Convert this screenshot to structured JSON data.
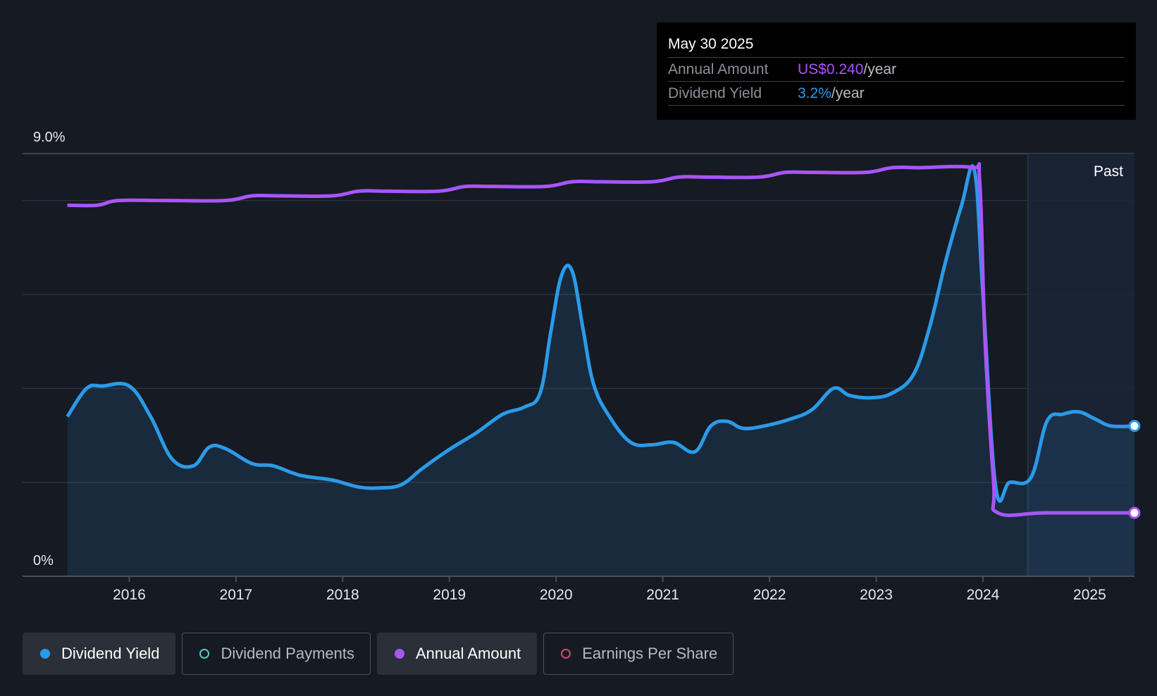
{
  "tooltip": {
    "date": "May 30 2025",
    "rows": [
      {
        "label": "Annual Amount",
        "value": "US$0.240",
        "unit": "/year"
      },
      {
        "label": "Dividend Yield",
        "value": "3.2%",
        "unit": "/year"
      }
    ]
  },
  "legend": [
    {
      "label": "Dividend Yield",
      "color": "#2b9ae8",
      "active": true,
      "filled": true
    },
    {
      "label": "Dividend Payments",
      "color": "#4fd1c5",
      "active": false,
      "filled": false
    },
    {
      "label": "Annual Amount",
      "color": "#a855f7",
      "active": true,
      "filled": true
    },
    {
      "label": "Earnings Per Share",
      "color": "#d9466f",
      "active": false,
      "filled": false
    }
  ],
  "chart_data": {
    "type": "line",
    "y_top_label": "9.0%",
    "y_bottom_label": "0%",
    "ylim": [
      0,
      9.0
    ],
    "xlim": [
      2015.0,
      2025.42
    ],
    "x_ticks": [
      "2016",
      "2017",
      "2018",
      "2019",
      "2020",
      "2021",
      "2022",
      "2023",
      "2024",
      "2025"
    ],
    "past_label": "Past",
    "past_start": 2024.42,
    "colors": {
      "yield": "#2b9ae8",
      "amount": "#a855f7"
    },
    "series": [
      {
        "name": "Dividend Yield",
        "x": [
          2015.42,
          2015.6,
          2015.75,
          2016.0,
          2016.2,
          2016.4,
          2016.6,
          2016.75,
          2016.9,
          2017.15,
          2017.35,
          2017.6,
          2017.9,
          2018.15,
          2018.35,
          2018.55,
          2018.75,
          2019.0,
          2019.25,
          2019.5,
          2019.7,
          2019.85,
          2019.95,
          2020.05,
          2020.15,
          2020.25,
          2020.35,
          2020.5,
          2020.7,
          2020.9,
          2021.1,
          2021.3,
          2021.45,
          2021.6,
          2021.75,
          2021.95,
          2022.2,
          2022.4,
          2022.6,
          2022.75,
          2022.95,
          2023.15,
          2023.35,
          2023.5,
          2023.65,
          2023.8,
          2023.92,
          2024.0,
          2024.12,
          2024.25,
          2024.45,
          2024.6,
          2024.75,
          2024.9,
          2025.05,
          2025.2,
          2025.42
        ],
        "values": [
          3.4,
          4.0,
          4.05,
          4.05,
          3.4,
          2.5,
          2.35,
          2.75,
          2.72,
          2.4,
          2.35,
          2.15,
          2.05,
          1.9,
          1.88,
          1.95,
          2.3,
          2.7,
          3.05,
          3.45,
          3.6,
          3.9,
          5.2,
          6.4,
          6.5,
          5.3,
          4.1,
          3.4,
          2.85,
          2.8,
          2.85,
          2.65,
          3.2,
          3.3,
          3.15,
          3.2,
          3.35,
          3.55,
          4.0,
          3.85,
          3.8,
          3.9,
          4.3,
          5.3,
          6.7,
          7.9,
          8.65,
          6.0,
          1.9,
          2.0,
          2.1,
          3.3,
          3.45,
          3.5,
          3.35,
          3.2,
          3.2
        ]
      },
      {
        "name": "Annual Amount",
        "x": [
          2015.42,
          2015.7,
          2015.9,
          2016.35,
          2016.9,
          2017.15,
          2017.4,
          2017.9,
          2018.15,
          2018.4,
          2018.9,
          2019.15,
          2019.4,
          2019.9,
          2020.15,
          2020.4,
          2020.9,
          2021.15,
          2021.4,
          2021.9,
          2022.15,
          2022.4,
          2022.9,
          2023.15,
          2023.4,
          2023.9,
          2023.97,
          2024.02,
          2024.1,
          2024.14,
          2024.6,
          2025.42
        ],
        "values": [
          7.9,
          7.9,
          8.0,
          8.0,
          8.0,
          8.1,
          8.1,
          8.1,
          8.2,
          8.2,
          8.2,
          8.3,
          8.3,
          8.3,
          8.4,
          8.4,
          8.4,
          8.5,
          8.5,
          8.5,
          8.6,
          8.6,
          8.6,
          8.7,
          8.7,
          8.7,
          8.4,
          5.0,
          2.0,
          1.35,
          1.35,
          1.35
        ]
      }
    ]
  }
}
